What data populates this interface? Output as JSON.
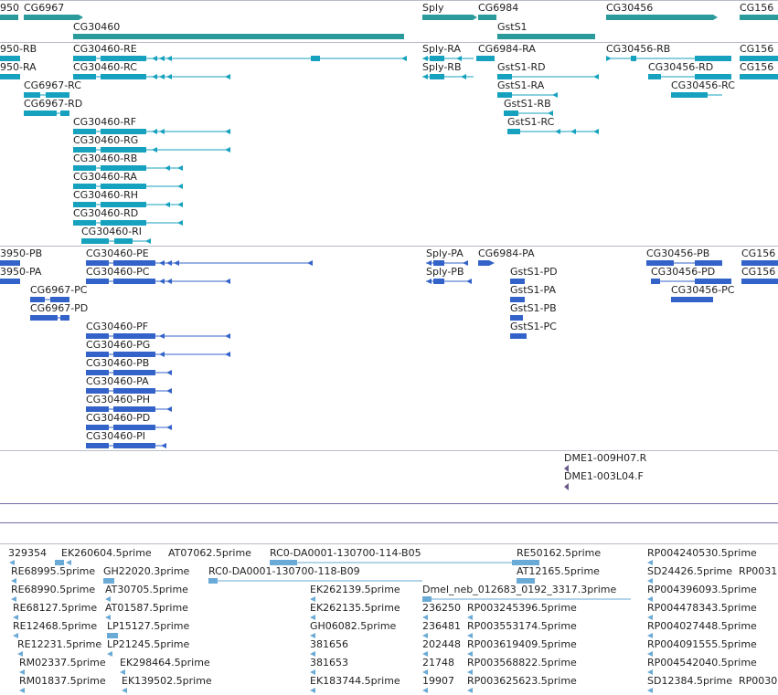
{
  "colors": {
    "gene": "#2a9a9a",
    "transcript": "#16a2bf",
    "protein": "#3363c9",
    "est": "#6aaad6",
    "oligo": "#6a5a8a"
  },
  "gene_track": {
    "labels": [
      "950",
      "CG6967",
      "CG30460",
      "Sply",
      "CG6984",
      "GstS1",
      "CG30456",
      "CG156"
    ]
  },
  "transcript_track": {
    "labels": [
      "950-RB",
      "950-RA",
      "CG30460-RE",
      "CG30460-RC",
      "CG6967-RC",
      "CG6967-RD",
      "CG30460-RF",
      "CG30460-RG",
      "CG30460-RB",
      "CG30460-RA",
      "CG30460-RH",
      "CG30460-RD",
      "CG30460-RI",
      "Sply-RA",
      "Sply-RB",
      "CG6984-RA",
      "GstS1-RD",
      "GstS1-RA",
      "GstS1-RB",
      "GstS1-RC",
      "CG30456-RB",
      "CG30456-RD",
      "CG30456-RC",
      "CG156",
      "CG156"
    ]
  },
  "protein_track": {
    "labels": [
      "3950-PB",
      "3950-PA",
      "CG30460-PE",
      "CG30460-PC",
      "CG6967-PC",
      "CG6967-PD",
      "CG30460-PF",
      "CG30460-PG",
      "CG30460-PB",
      "CG30460-PA",
      "CG30460-PH",
      "CG30460-PD",
      "CG30460-PI",
      "Sply-PA",
      "Sply-PB",
      "CG6984-PA",
      "GstS1-PD",
      "GstS1-PA",
      "GstS1-PB",
      "GstS1-PC",
      "CG30456-PB",
      "CG30456-PD",
      "CG30456-PC",
      "CG156",
      "CG156"
    ]
  },
  "oligo_track": {
    "labels": [
      "DME1-009H07.R",
      "DME1-003L04.F"
    ]
  },
  "est_track": {
    "labels": [
      "329354",
      "EK260604.5prime",
      "AT07062.5prime",
      "RC0-DA0001-130700-114-B05",
      "RE50162.5prime",
      "RP004240530.5prime",
      "RE68995.5prime",
      "GH22020.3prime",
      "RC0-DA0001-130700-118-B09",
      "AT12165.5prime",
      "SD24426.5prime",
      "RP0031",
      "RE68990.5prime",
      "AT30705.5prime",
      "EK262139.5prime",
      "Dmel_neb_012683_0192_3317.3prime",
      "RP004396093.5prime",
      "RE68127.5prime",
      "AT01587.5prime",
      "EK262135.5prime",
      "236250",
      "RP003245396.5prime",
      "RP004478343.5prime",
      "RE12468.5prime",
      "LP15127.5prime",
      "GH06082.5prime",
      "236481",
      "RP003553174.5prime",
      "RP004027448.5prime",
      "RE12231.5prime",
      "LP21245.5prime",
      "381656",
      "202448",
      "RP003619409.5prime",
      "RP004091555.5prime",
      "RM02337.5prime",
      "EK298464.5prime",
      "381653",
      "21748",
      "RP003568822.5prime",
      "RP004542040.5prime",
      "RM01837.5prime",
      "EK139502.5prime",
      "EK183744.5prime",
      "19907",
      "RP003625623.5prime",
      "SD12384.5prime",
      "RP0030"
    ]
  }
}
